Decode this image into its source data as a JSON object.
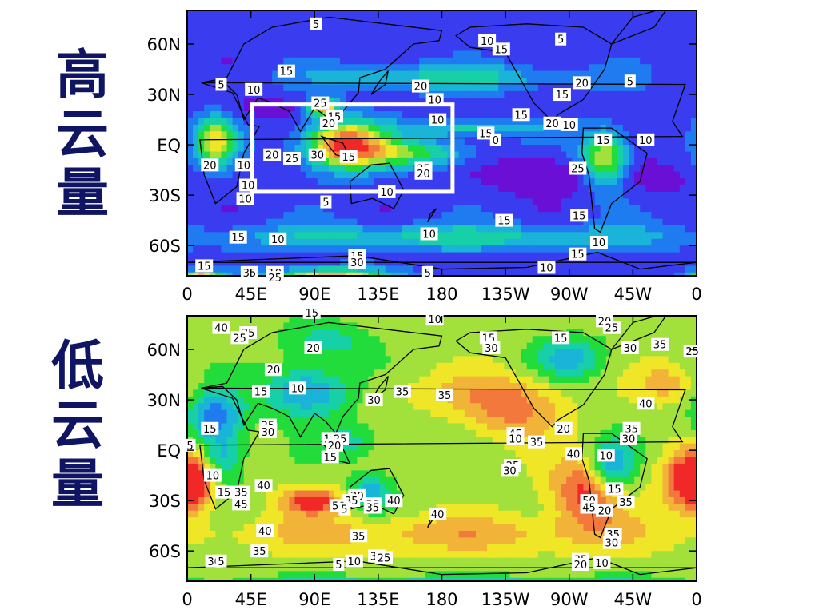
{
  "labels": {
    "high": "高\n云\n量",
    "low": "低\n云\n量"
  },
  "axes": {
    "lat_ticks": [
      "60N",
      "30N",
      "EQ",
      "30S",
      "60S"
    ],
    "lon_ticks": [
      "0",
      "45E",
      "90E",
      "135E",
      "180",
      "135W",
      "90W",
      "45W",
      "0"
    ]
  },
  "colors": {
    "palette": [
      "#6a0fd6",
      "#3a3cf0",
      "#1e7cf0",
      "#19b4d8",
      "#17d0a8",
      "#22dc3c",
      "#a2e13c",
      "#f0e628",
      "#f2b438",
      "#f2783c",
      "#f02828"
    ],
    "box": "#ffffff",
    "coast": "#000000"
  },
  "panels": [
    {
      "id": "high",
      "base_level": 1,
      "features": [
        {
          "lon": 112,
          "lat": 0,
          "rlon": 28,
          "rlat": 14,
          "amp": 9
        },
        {
          "lon": 96,
          "lat": 22,
          "rlon": 10,
          "rlat": 5,
          "amp": 7
        },
        {
          "lon": 20,
          "lat": 2,
          "rlon": 14,
          "rlat": 14,
          "amp": 6
        },
        {
          "lon": 295,
          "lat": -8,
          "rlon": 16,
          "rlat": 16,
          "amp": 6
        },
        {
          "lon": 160,
          "lat": -5,
          "rlon": 40,
          "rlat": 8,
          "amp": 4
        },
        {
          "lon": 200,
          "lat": 10,
          "rlon": 50,
          "rlat": 5,
          "amp": 3
        },
        {
          "lon": 250,
          "lat": -18,
          "rlon": 40,
          "rlat": 10,
          "amp": -2
        },
        {
          "lon": 330,
          "lat": -20,
          "rlon": 25,
          "rlat": 10,
          "amp": -1
        },
        {
          "lon": 60,
          "lat": 22,
          "rlon": 25,
          "rlat": 8,
          "amp": -1
        },
        {
          "lon": 180,
          "lat": 40,
          "rlon": 90,
          "rlat": 8,
          "amp": 3
        },
        {
          "lon": 180,
          "lat": -55,
          "rlon": 180,
          "rlat": 8,
          "amp": 3
        },
        {
          "lon": 100,
          "lat": -80,
          "rlon": 40,
          "rlat": 6,
          "amp": 8
        },
        {
          "lon": 10,
          "lat": -80,
          "rlon": 15,
          "rlat": 4,
          "amp": 8
        }
      ],
      "contour_labels": [
        {
          "lon": 91,
          "lat": 72,
          "text": "5"
        },
        {
          "lon": 212,
          "lat": 62,
          "text": "10"
        },
        {
          "lon": 222,
          "lat": 57,
          "text": "15"
        },
        {
          "lon": 264,
          "lat": 63,
          "text": "5"
        },
        {
          "lon": 70,
          "lat": 44,
          "text": "15"
        },
        {
          "lon": 24,
          "lat": 36,
          "text": "5"
        },
        {
          "lon": 47,
          "lat": 33,
          "text": "10"
        },
        {
          "lon": 165,
          "lat": 35,
          "text": "20"
        },
        {
          "lon": 175,
          "lat": 27,
          "text": "10"
        },
        {
          "lon": 279,
          "lat": 37,
          "text": "20"
        },
        {
          "lon": 313,
          "lat": 38,
          "text": "5"
        },
        {
          "lon": 265,
          "lat": 30,
          "text": "15"
        },
        {
          "lon": 94,
          "lat": 25,
          "text": "25"
        },
        {
          "lon": 104,
          "lat": 17,
          "text": "15"
        },
        {
          "lon": 100,
          "lat": 13,
          "text": "20"
        },
        {
          "lon": 177,
          "lat": 15,
          "text": "10"
        },
        {
          "lon": 236,
          "lat": 18,
          "text": "15"
        },
        {
          "lon": 258,
          "lat": 13,
          "text": "20"
        },
        {
          "lon": 270,
          "lat": 12,
          "text": "10"
        },
        {
          "lon": 211,
          "lat": 7,
          "text": "15"
        },
        {
          "lon": 218,
          "lat": 3,
          "text": "0"
        },
        {
          "lon": 294,
          "lat": 3,
          "text": "15"
        },
        {
          "lon": 324,
          "lat": 3,
          "text": "10"
        },
        {
          "lon": 60,
          "lat": -6,
          "text": "20"
        },
        {
          "lon": 74,
          "lat": -8,
          "text": "25"
        },
        {
          "lon": 92,
          "lat": -6,
          "text": "30"
        },
        {
          "lon": 114,
          "lat": -7,
          "text": "15"
        },
        {
          "lon": 16,
          "lat": -12,
          "text": "20"
        },
        {
          "lon": 40,
          "lat": -12,
          "text": "10"
        },
        {
          "lon": 167,
          "lat": -14,
          "text": "25"
        },
        {
          "lon": 167,
          "lat": -17,
          "text": "20"
        },
        {
          "lon": 276,
          "lat": -14,
          "text": "25"
        },
        {
          "lon": 43,
          "lat": -24,
          "text": "10"
        },
        {
          "lon": 41,
          "lat": -32,
          "text": "10"
        },
        {
          "lon": 98,
          "lat": -34,
          "text": "5"
        },
        {
          "lon": 141,
          "lat": -28,
          "text": "10"
        },
        {
          "lon": 224,
          "lat": -45,
          "text": "15"
        },
        {
          "lon": 277,
          "lat": -42,
          "text": "15"
        },
        {
          "lon": 36,
          "lat": -55,
          "text": "15"
        },
        {
          "lon": 64,
          "lat": -56,
          "text": "10"
        },
        {
          "lon": 171,
          "lat": -53,
          "text": "10"
        },
        {
          "lon": 291,
          "lat": -58,
          "text": "10"
        },
        {
          "lon": 120,
          "lat": -66,
          "text": "15"
        },
        {
          "lon": 120,
          "lat": -70,
          "text": "30"
        },
        {
          "lon": 276,
          "lat": -65,
          "text": "15"
        },
        {
          "lon": 12,
          "lat": -72,
          "text": "15"
        },
        {
          "lon": 44,
          "lat": -76,
          "text": "35"
        },
        {
          "lon": 62,
          "lat": -76,
          "text": "10"
        },
        {
          "lon": 62,
          "lat": -79,
          "text": "25"
        },
        {
          "lon": 170,
          "lat": -76,
          "text": "5"
        },
        {
          "lon": 254,
          "lat": -73,
          "text": "10"
        }
      ]
    },
    {
      "id": "low",
      "base_level": 6,
      "features": [
        {
          "lon": 230,
          "lat": 25,
          "rlon": 35,
          "rlat": 18,
          "amp": 3
        },
        {
          "lon": 282,
          "lat": -25,
          "rlon": 25,
          "rlat": 20,
          "amp": 4
        },
        {
          "lon": 352,
          "lat": -18,
          "rlon": 18,
          "rlat": 18,
          "amp": 4
        },
        {
          "lon": 5,
          "lat": -20,
          "rlon": 14,
          "rlat": 16,
          "amp": 4
        },
        {
          "lon": 88,
          "lat": -30,
          "rlon": 22,
          "rlat": 8,
          "amp": 4
        },
        {
          "lon": 180,
          "lat": 35,
          "rlon": 60,
          "rlat": 12,
          "amp": 1
        },
        {
          "lon": 340,
          "lat": 40,
          "rlon": 20,
          "rlat": 12,
          "amp": 2
        },
        {
          "lon": 180,
          "lat": -50,
          "rlon": 180,
          "rlat": 12,
          "amp": 2
        },
        {
          "lon": 20,
          "lat": 20,
          "rlon": 20,
          "rlat": 15,
          "amp": -4
        },
        {
          "lon": 85,
          "lat": 35,
          "rlon": 30,
          "rlat": 15,
          "amp": -4
        },
        {
          "lon": 300,
          "lat": -10,
          "rlon": 15,
          "rlat": 15,
          "amp": -4
        },
        {
          "lon": 25,
          "lat": -5,
          "rlon": 15,
          "rlat": 15,
          "amp": -3
        },
        {
          "lon": 130,
          "lat": -25,
          "rlon": 15,
          "rlat": 12,
          "amp": -3
        },
        {
          "lon": 180,
          "lat": -85,
          "rlon": 180,
          "rlat": 8,
          "amp": -4
        },
        {
          "lon": 270,
          "lat": 55,
          "rlon": 25,
          "rlat": 12,
          "amp": -3
        },
        {
          "lon": 100,
          "lat": 65,
          "rlon": 30,
          "rlat": 10,
          "amp": -2
        },
        {
          "lon": 115,
          "lat": 5,
          "rlon": 20,
          "rlat": 10,
          "amp": -2
        }
      ],
      "contour_labels": [
        {
          "lon": 24,
          "lat": 73,
          "text": "40"
        },
        {
          "lon": 43,
          "lat": 70,
          "text": "35"
        },
        {
          "lon": 37,
          "lat": 67,
          "text": "25"
        },
        {
          "lon": 88,
          "lat": 82,
          "text": "15"
        },
        {
          "lon": 175,
          "lat": 78,
          "text": "10"
        },
        {
          "lon": 213,
          "lat": 67,
          "text": "15"
        },
        {
          "lon": 215,
          "lat": 61,
          "text": "30"
        },
        {
          "lon": 264,
          "lat": 67,
          "text": "15"
        },
        {
          "lon": 295,
          "lat": 77,
          "text": "20"
        },
        {
          "lon": 300,
          "lat": 73,
          "text": "25"
        },
        {
          "lon": 313,
          "lat": 61,
          "text": "30"
        },
        {
          "lon": 334,
          "lat": 63,
          "text": "35"
        },
        {
          "lon": 357,
          "lat": 59,
          "text": "25"
        },
        {
          "lon": 89,
          "lat": 61,
          "text": "20"
        },
        {
          "lon": 61,
          "lat": 48,
          "text": "20"
        },
        {
          "lon": 78,
          "lat": 37,
          "text": "10"
        },
        {
          "lon": 52,
          "lat": 35,
          "text": "15"
        },
        {
          "lon": 132,
          "lat": 30,
          "text": "30"
        },
        {
          "lon": 152,
          "lat": 35,
          "text": "35"
        },
        {
          "lon": 182,
          "lat": 33,
          "text": "35"
        },
        {
          "lon": 232,
          "lat": 10,
          "text": "45"
        },
        {
          "lon": 232,
          "lat": 7,
          "text": "10"
        },
        {
          "lon": 266,
          "lat": 13,
          "text": "20"
        },
        {
          "lon": 324,
          "lat": 28,
          "text": "40"
        },
        {
          "lon": 314,
          "lat": 13,
          "text": "35"
        },
        {
          "lon": 312,
          "lat": 7,
          "text": "30"
        },
        {
          "lon": 16,
          "lat": 13,
          "text": "15"
        },
        {
          "lon": 57,
          "lat": 15,
          "text": "25"
        },
        {
          "lon": 57,
          "lat": 11,
          "text": "30"
        },
        {
          "lon": 101,
          "lat": 7,
          "text": "15"
        },
        {
          "lon": 108,
          "lat": 7,
          "text": "25"
        },
        {
          "lon": 104,
          "lat": 3,
          "text": "20"
        },
        {
          "lon": 101,
          "lat": -4,
          "text": "15"
        },
        {
          "lon": 2,
          "lat": 3,
          "text": "5"
        },
        {
          "lon": 247,
          "lat": 5,
          "text": "35"
        },
        {
          "lon": 273,
          "lat": -2,
          "text": "40"
        },
        {
          "lon": 296,
          "lat": -3,
          "text": "10"
        },
        {
          "lon": 230,
          "lat": -9,
          "text": "25"
        },
        {
          "lon": 228,
          "lat": -12,
          "text": "30"
        },
        {
          "lon": 18,
          "lat": -15,
          "text": "10"
        },
        {
          "lon": 26,
          "lat": -25,
          "text": "15"
        },
        {
          "lon": 38,
          "lat": -25,
          "text": "35"
        },
        {
          "lon": 54,
          "lat": -21,
          "text": "40"
        },
        {
          "lon": 38,
          "lat": -32,
          "text": "45"
        },
        {
          "lon": 284,
          "lat": -30,
          "text": "50"
        },
        {
          "lon": 284,
          "lat": -34,
          "text": "45"
        },
        {
          "lon": 295,
          "lat": -36,
          "text": "20"
        },
        {
          "lon": 302,
          "lat": -23,
          "text": "15"
        },
        {
          "lon": 310,
          "lat": -31,
          "text": "35"
        },
        {
          "lon": 120,
          "lat": -27,
          "text": "20"
        },
        {
          "lon": 116,
          "lat": -30,
          "text": "35"
        },
        {
          "lon": 107,
          "lat": -33,
          "text": "50"
        },
        {
          "lon": 111,
          "lat": -35,
          "text": "5"
        },
        {
          "lon": 131,
          "lat": -32,
          "text": "30"
        },
        {
          "lon": 131,
          "lat": -34,
          "text": "35"
        },
        {
          "lon": 146,
          "lat": -30,
          "text": "40"
        },
        {
          "lon": 177,
          "lat": -38,
          "text": "40"
        },
        {
          "lon": 55,
          "lat": -48,
          "text": "40"
        },
        {
          "lon": 121,
          "lat": -51,
          "text": "35"
        },
        {
          "lon": 301,
          "lat": -50,
          "text": "35"
        },
        {
          "lon": 300,
          "lat": -55,
          "text": "30"
        },
        {
          "lon": 51,
          "lat": -60,
          "text": "35"
        },
        {
          "lon": 19,
          "lat": -66,
          "text": "30"
        },
        {
          "lon": 24,
          "lat": -66,
          "text": "5"
        },
        {
          "lon": 107,
          "lat": -68,
          "text": "5"
        },
        {
          "lon": 118,
          "lat": -66,
          "text": "10"
        },
        {
          "lon": 134,
          "lat": -63,
          "text": "30"
        },
        {
          "lon": 139,
          "lat": -64,
          "text": "25"
        },
        {
          "lon": 278,
          "lat": -65,
          "text": "35"
        },
        {
          "lon": 278,
          "lat": -68,
          "text": "20"
        },
        {
          "lon": 293,
          "lat": -67,
          "text": "10"
        }
      ]
    }
  ]
}
